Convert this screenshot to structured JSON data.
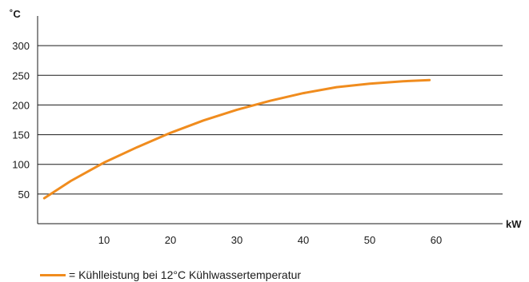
{
  "chart_data": {
    "type": "line",
    "y_unit": "˚C",
    "x_unit": "kW",
    "xlim": [
      0,
      70
    ],
    "ylim": [
      0,
      350
    ],
    "x_ticks": [
      10,
      20,
      30,
      40,
      50,
      60
    ],
    "y_ticks": [
      50,
      100,
      150,
      200,
      250,
      300
    ],
    "grid": "horizontal",
    "series": [
      {
        "name": "= Kühlleistung bei 12°C Kühlwassertemperatur",
        "color": "#f08c1e",
        "points": [
          [
            1,
            43
          ],
          [
            5,
            72
          ],
          [
            10,
            103
          ],
          [
            15,
            129
          ],
          [
            20,
            153
          ],
          [
            25,
            174
          ],
          [
            30,
            192
          ],
          [
            35,
            207
          ],
          [
            40,
            220
          ],
          [
            45,
            230
          ],
          [
            50,
            236
          ],
          [
            55,
            240
          ],
          [
            59,
            242
          ]
        ]
      }
    ],
    "legend": {
      "label": "= Kühlleistung bei 12°C Kühlwassertemperatur",
      "position": "bottom-left"
    }
  }
}
